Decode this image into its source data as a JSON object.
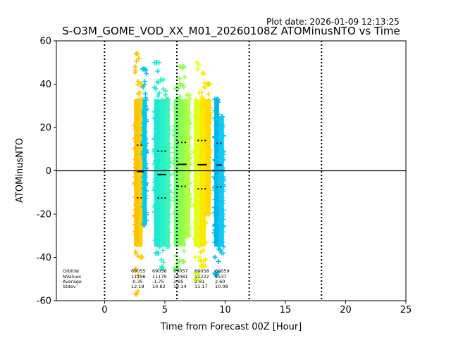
{
  "chart_data": {
    "type": "scatter",
    "plot_date": "Plot date: 2026-01-09 12:13:25",
    "title": "S-O3M_GOME_VOD_XX_M01_20260108Z ATOMinusNTO vs Time",
    "xlabel": "Time from Forecast 00Z [Hour]",
    "ylabel": "ATOMinusNTO",
    "xlim": [
      -4,
      25
    ],
    "ylim": [
      -60,
      60
    ],
    "xticks": [
      0,
      5,
      10,
      15,
      20,
      25
    ],
    "yticks": [
      -60,
      -40,
      -20,
      0,
      20,
      40,
      60
    ],
    "vlines": [
      0,
      6,
      12,
      18
    ],
    "hline": 0,
    "marker": "+",
    "orbits": [
      {
        "orbit": "69055",
        "nvalues": "11196",
        "average": "-0.35",
        "stdev": "12.18",
        "mean_y": -0.35,
        "stdev_y": 12.18,
        "segments": [
          {
            "x0": 2.45,
            "x1": 2.85,
            "ymin": -57,
            "ymax": 54,
            "color": "#FFC000"
          },
          {
            "x0": 2.85,
            "x1": 3.15,
            "ymin": -40,
            "ymax": 40,
            "color": "#FFD000"
          },
          {
            "x0": 3.15,
            "x1": 3.5,
            "ymin": -25,
            "ymax": 47,
            "color": "#00C8F0"
          }
        ]
      },
      {
        "orbit": "69056",
        "nvalues": "11179",
        "average": "-1.75",
        "stdev": "10.82",
        "mean_y": -1.75,
        "stdev_y": 10.82,
        "segments": [
          {
            "x0": 4.1,
            "x1": 4.6,
            "ymin": -38,
            "ymax": 50,
            "color": "#1EE8D0"
          },
          {
            "x0": 4.6,
            "x1": 5.1,
            "ymin": -45,
            "ymax": 42,
            "color": "#28F0C8"
          },
          {
            "x0": 5.1,
            "x1": 5.4,
            "ymin": -35,
            "ymax": 33,
            "color": "#3AF5B8"
          }
        ]
      },
      {
        "orbit": "69057",
        "nvalues": "13081",
        "average": "2.95",
        "stdev": "10.14",
        "mean_y": 2.95,
        "stdev_y": 10.14,
        "segments": [
          {
            "x0": 5.75,
            "x1": 6.2,
            "ymin": -45,
            "ymax": 38,
            "color": "#70FF70"
          },
          {
            "x0": 6.2,
            "x1": 6.7,
            "ymin": -42,
            "ymax": 48,
            "color": "#90FF50"
          },
          {
            "x0": 6.7,
            "x1": 7.1,
            "ymin": -30,
            "ymax": 35,
            "color": "#B0FF40"
          }
        ]
      },
      {
        "orbit": "69058",
        "nvalues": "11222",
        "average": "2.81",
        "stdev": "11.17",
        "mean_y": 2.81,
        "stdev_y": 11.17,
        "segments": [
          {
            "x0": 7.4,
            "x1": 7.9,
            "ymin": -50,
            "ymax": 50,
            "color": "#E0FF20"
          },
          {
            "x0": 7.9,
            "x1": 8.4,
            "ymin": -44,
            "ymax": 45,
            "color": "#FFE800"
          },
          {
            "x0": 8.4,
            "x1": 8.8,
            "ymin": -20,
            "ymax": 40,
            "color": "#FFD800"
          }
        ]
      },
      {
        "orbit": "69059",
        "nvalues": "5537",
        "average": "2.60",
        "stdev": "10.08",
        "mean_y": 2.6,
        "stdev_y": 10.08,
        "segments": [
          {
            "x0": 9.1,
            "x1": 9.5,
            "ymin": -48,
            "ymax": 33,
            "color": "#00B8E8"
          },
          {
            "x0": 9.5,
            "x1": 9.9,
            "ymin": -38,
            "ymax": 25,
            "color": "#10C8F0"
          }
        ]
      }
    ],
    "stats_labels": [
      "OrbitNr",
      "NValues",
      "Average",
      "Stdev"
    ]
  }
}
